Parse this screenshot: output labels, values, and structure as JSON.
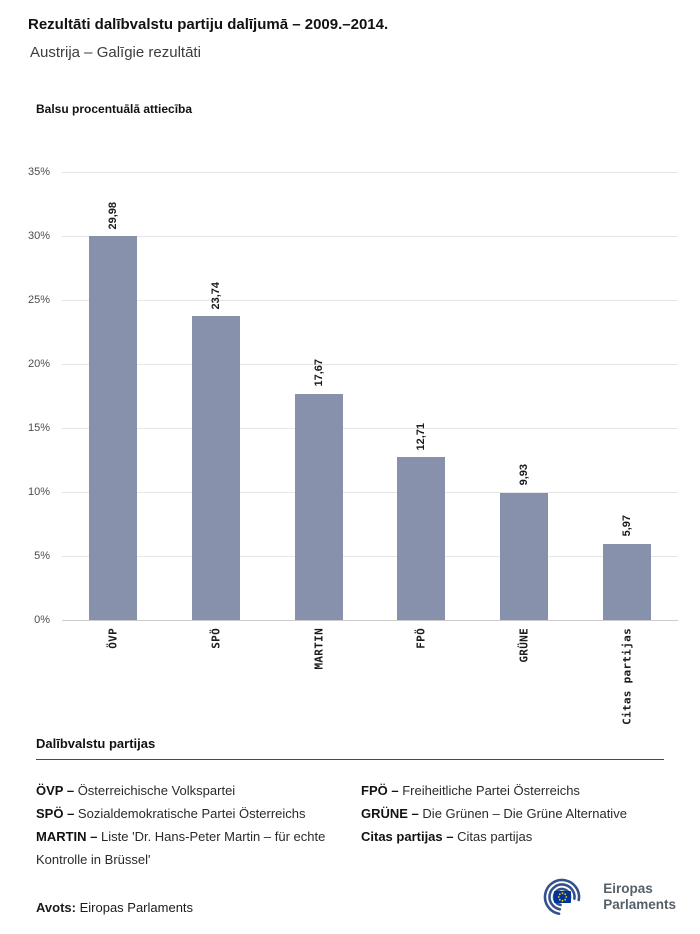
{
  "header": {
    "title": "Rezultāti dalībvalstu partiju dalījumā – 2009.–2014.",
    "subtitle": "Austrija – Galīgie rezultāti"
  },
  "chart_data": {
    "type": "bar",
    "title": "Balsu procentuālā attiecība",
    "categories": [
      "ÖVP",
      "SPÖ",
      "MARTIN",
      "FPÖ",
      "GRÜNE",
      "Citas partijas"
    ],
    "values": [
      29.98,
      23.74,
      17.67,
      12.71,
      9.93,
      5.97
    ],
    "value_labels": [
      "29,98",
      "23,74",
      "17,67",
      "12,71",
      "9,93",
      "5,97"
    ],
    "xlabel": "",
    "ylabel": "",
    "ylim": [
      0,
      35
    ],
    "y_ticks": [
      "0%",
      "5%",
      "10%",
      "15%",
      "20%",
      "25%",
      "30%",
      "35%"
    ],
    "grid": true,
    "legend_position": "none",
    "bar_color": "#8791ab"
  },
  "legend": {
    "heading": "Dalībvalstu partijas",
    "columns": [
      [
        {
          "name": "ÖVP –",
          "desc": "Österreichische Volkspartei"
        },
        {
          "name": "SPÖ –",
          "desc": "Sozialdemokratische Partei Österreichs"
        },
        {
          "name": "MARTIN –",
          "desc": "Liste 'Dr. Hans-Peter Martin – für echte Kontrolle in Brüssel'"
        }
      ],
      [
        {
          "name": "FPÖ –",
          "desc": "Freiheitliche Partei Österreichs"
        },
        {
          "name": "GRÜNE –",
          "desc": "Die Grünen – Die Grüne Alternative"
        },
        {
          "name": "Citas partijas –",
          "desc": "Citas partijas"
        }
      ]
    ]
  },
  "footer": {
    "source_label": "Avots:",
    "source_value": "Eiropas Parlaments",
    "logo_text_line1": "Eiropas",
    "logo_text_line2": "Parlaments"
  },
  "colors": {
    "bar": "#8791ab",
    "logo_blue": "#33528c",
    "eu_flag_blue": "#003399",
    "eu_star_yellow": "#ffcc00"
  }
}
